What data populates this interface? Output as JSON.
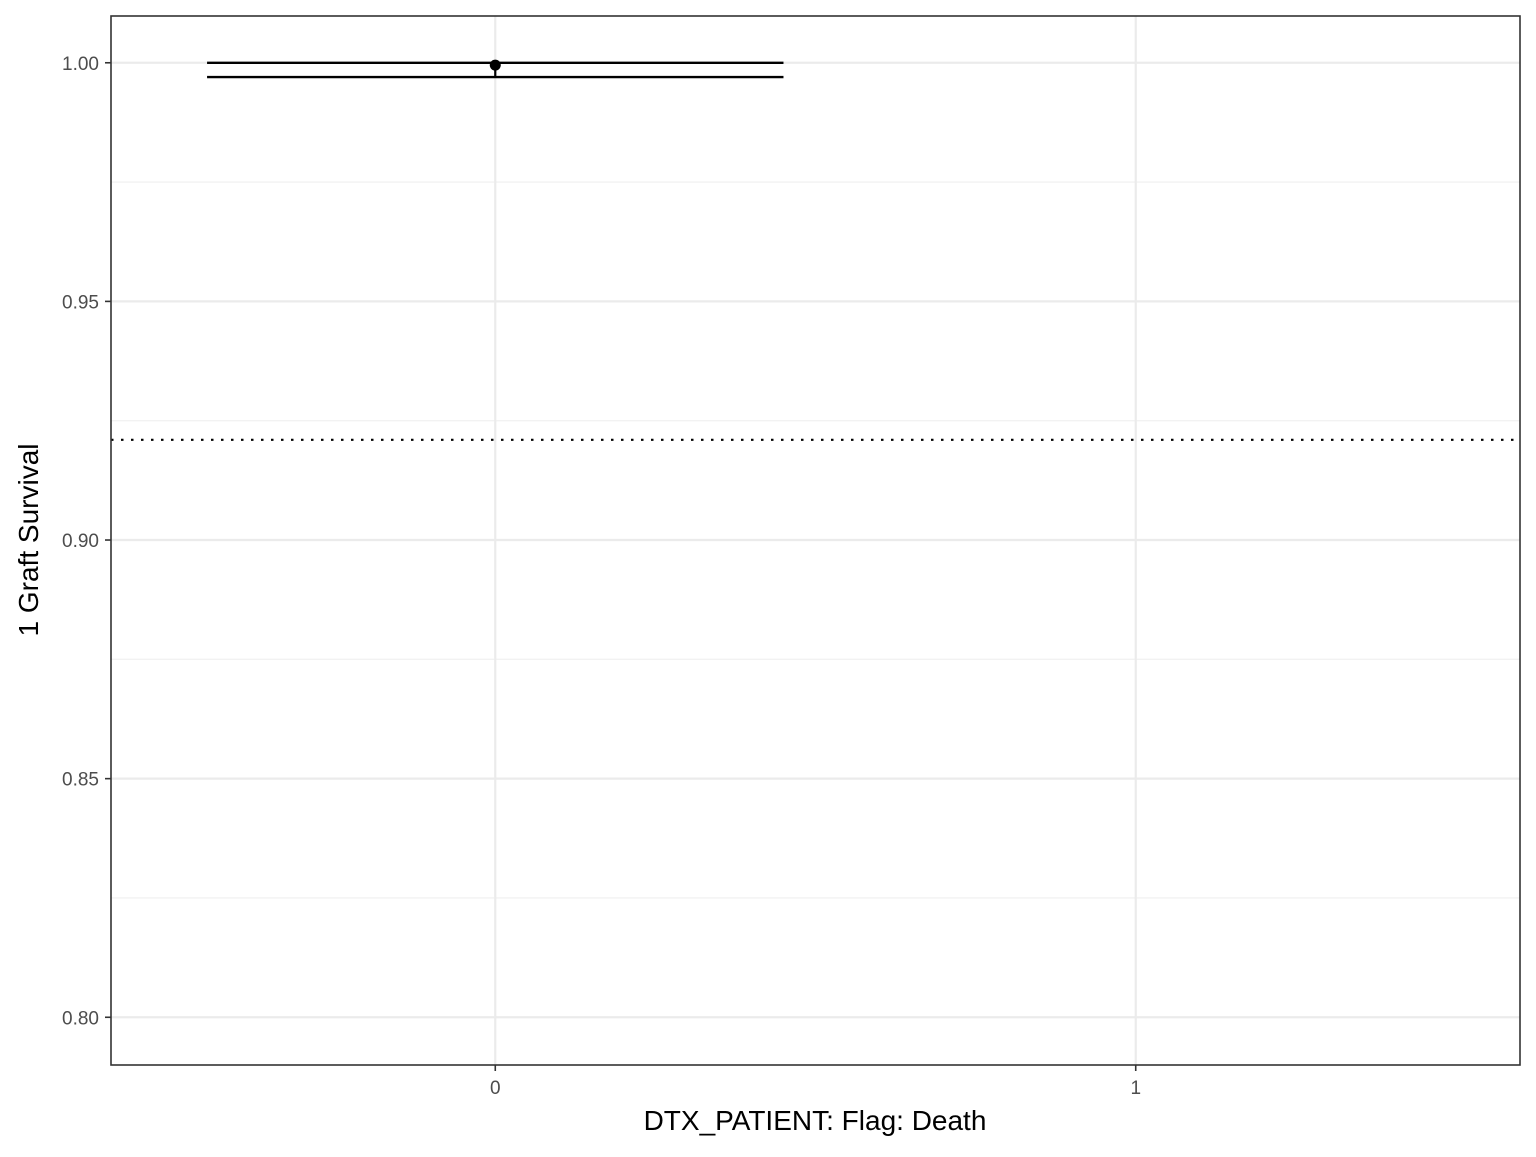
{
  "chart_data": {
    "type": "scatter",
    "xlabel": "DTX_PATIENT: Flag: Death",
    "ylabel": "1 Graft Survival",
    "x_ticks": [
      "0",
      "1"
    ],
    "y_ticks": [
      "0.80",
      "0.85",
      "0.90",
      "0.95",
      "1.00"
    ],
    "xlim": [
      -0.6,
      1.6
    ],
    "ylim": [
      0.79,
      1.0098
    ],
    "grid": true,
    "legend": "none",
    "points": [
      {
        "x": 0,
        "y": 0.9995,
        "ymin": 0.997,
        "ymax": 1.0
      }
    ],
    "errorbar_halfwidth": 0.45,
    "reference_line": {
      "y": 0.921,
      "style": "dotted"
    },
    "colors": {
      "panel_border": "#333333",
      "grid_major": "#ebebeb",
      "grid_minor": "#f2f2f2",
      "point": "#000000",
      "reference_line": "#000000",
      "tick_label": "#4d4d4d"
    }
  }
}
